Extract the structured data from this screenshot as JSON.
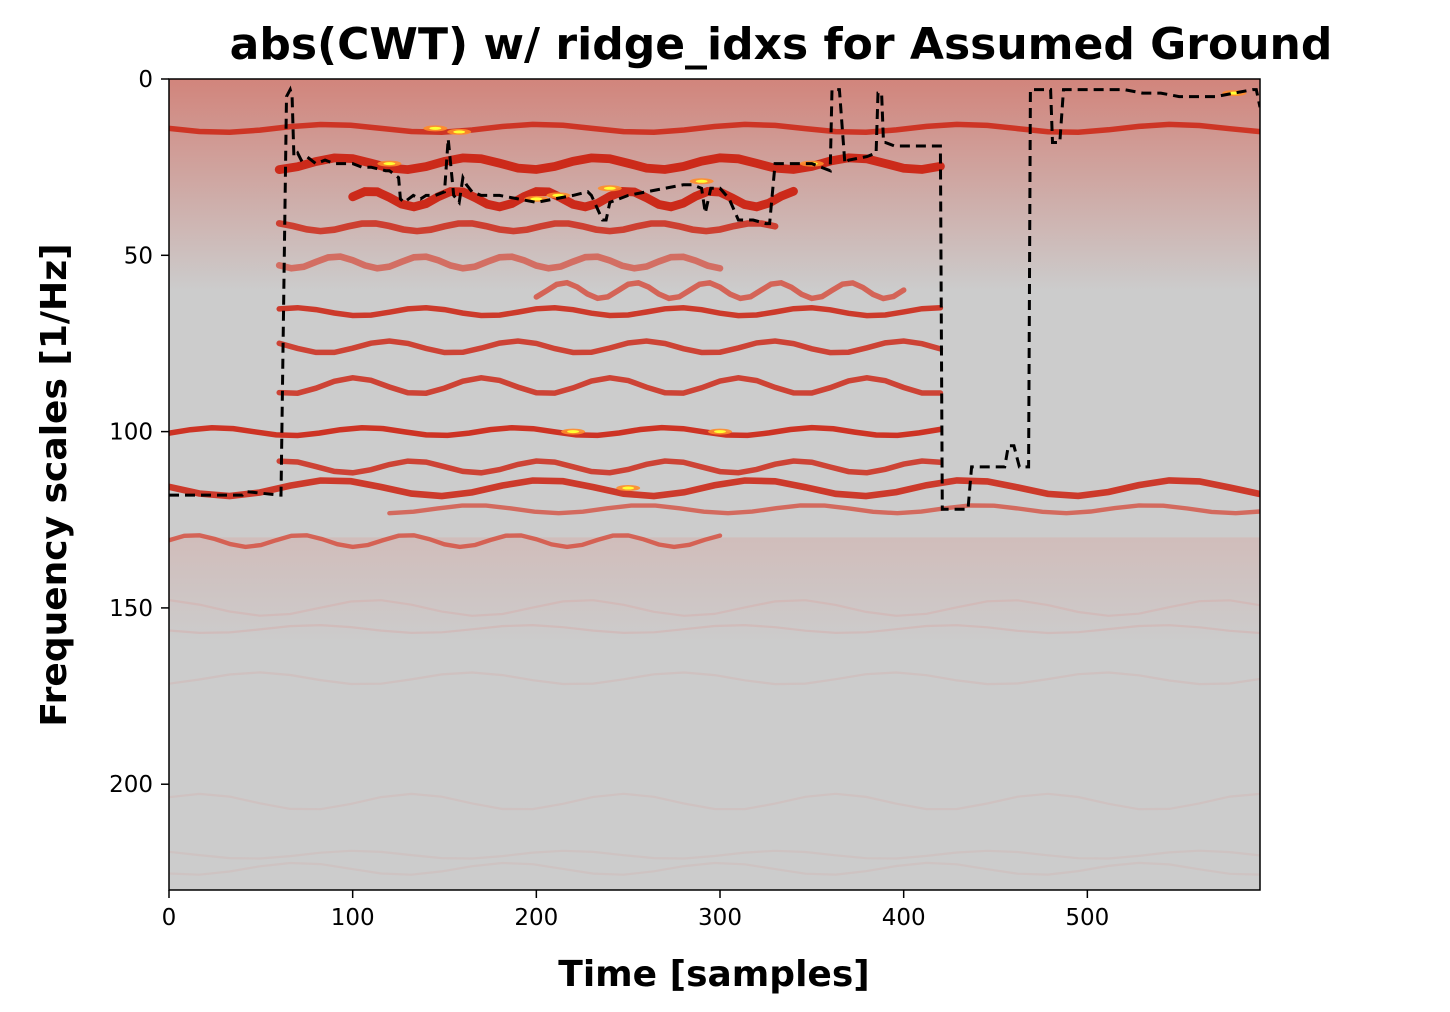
{
  "chart_data": {
    "type": "heatmap",
    "title": "abs(CWT) w/ ridge_idxs for Assumed Ground",
    "xlabel": "Time [samples]",
    "ylabel": "Frequency scales [1/Hz]",
    "xlim": [
      0,
      594
    ],
    "ylim": [
      230,
      0
    ],
    "x_ticks": [
      0,
      100,
      200,
      300,
      400,
      500
    ],
    "y_ticks": [
      0,
      50,
      100,
      150,
      200
    ],
    "grid": false,
    "colormap": [
      "#cccccc",
      "#d9a09a",
      "#d64a3a",
      "#cc2a1a",
      "#ff8c2a",
      "#ffff33"
    ],
    "background_color": "#cccccc",
    "ridge_color": "#000000",
    "ridge_line_style": "dashed",
    "ridge_idxs": {
      "x": [
        0,
        40,
        42,
        60,
        61,
        64,
        66,
        67,
        68,
        70,
        72,
        75,
        80,
        85,
        90,
        100,
        105,
        110,
        118,
        120,
        125,
        126,
        128,
        133,
        137,
        140,
        145,
        150,
        152,
        155,
        158,
        160,
        162,
        165,
        170,
        175,
        180,
        190,
        200,
        210,
        220,
        228,
        230,
        236,
        238,
        240,
        245,
        250,
        260,
        270,
        280,
        285,
        290,
        292,
        295,
        300,
        305,
        310,
        318,
        325,
        327,
        330,
        335,
        340,
        350,
        355,
        360,
        361,
        362,
        365,
        368,
        370,
        380,
        385,
        386,
        388,
        389,
        390,
        395,
        400,
        410,
        420,
        421,
        430,
        435,
        437,
        440,
        450,
        455,
        457,
        460,
        463,
        465,
        468,
        469,
        472,
        480,
        481,
        483,
        485,
        487,
        488,
        495,
        500,
        510,
        520,
        530,
        540,
        550,
        560,
        570,
        580,
        590,
        592,
        594
      ],
      "y": [
        118,
        118,
        117,
        118,
        118,
        5,
        3,
        5,
        22,
        21,
        23,
        22,
        24,
        23,
        24,
        24,
        25,
        25,
        26,
        26,
        28,
        34,
        35,
        33,
        34,
        33,
        33,
        32,
        17,
        33,
        35,
        28,
        30,
        32,
        33,
        33,
        33,
        34,
        35,
        34,
        33,
        32,
        33,
        40,
        40,
        35,
        34,
        33,
        32,
        31,
        30,
        30,
        31,
        38,
        31,
        31,
        34,
        40,
        40,
        41,
        41,
        24,
        24,
        24,
        24,
        25,
        26,
        3,
        3,
        3,
        24,
        23,
        22,
        21,
        4,
        4,
        18,
        18,
        19,
        19,
        19,
        19,
        122,
        122,
        122,
        110,
        110,
        110,
        110,
        104,
        104,
        110,
        110,
        110,
        3,
        3,
        3,
        18,
        18,
        18,
        3,
        3,
        3,
        3,
        3,
        3,
        4,
        4,
        5,
        5,
        5,
        4,
        3,
        3,
        8
      ],
      "note_scale": "ridge y in frequency scale units"
    },
    "bands": [
      {
        "y": 14,
        "x0": 0,
        "x1": 594,
        "w": 2.5,
        "i": 0.8
      },
      {
        "y": 24,
        "x0": 60,
        "x1": 420,
        "w": 4,
        "i": 0.9
      },
      {
        "y": 34,
        "x0": 100,
        "x1": 340,
        "w": 4,
        "i": 0.95
      },
      {
        "y": 42,
        "x0": 60,
        "x1": 330,
        "w": 3,
        "i": 0.75
      },
      {
        "y": 52,
        "x0": 60,
        "x1": 300,
        "w": 3,
        "i": 0.6
      },
      {
        "y": 60,
        "x0": 200,
        "x1": 400,
        "w": 2.5,
        "i": 0.7
      },
      {
        "y": 66,
        "x0": 60,
        "x1": 420,
        "w": 2.5,
        "i": 0.8
      },
      {
        "y": 76,
        "x0": 60,
        "x1": 420,
        "w": 2.5,
        "i": 0.75
      },
      {
        "y": 87,
        "x0": 60,
        "x1": 420,
        "w": 2.5,
        "i": 0.75
      },
      {
        "y": 100,
        "x0": 0,
        "x1": 420,
        "w": 2.5,
        "i": 0.85
      },
      {
        "y": 110,
        "x0": 60,
        "x1": 420,
        "w": 2.5,
        "i": 0.75
      },
      {
        "y": 116,
        "x0": 0,
        "x1": 594,
        "w": 3,
        "i": 0.8
      },
      {
        "y": 122,
        "x0": 120,
        "x1": 594,
        "w": 2,
        "i": 0.65
      },
      {
        "y": 131,
        "x0": 0,
        "x1": 300,
        "w": 2,
        "i": 0.7
      },
      {
        "y": 150,
        "x0": 0,
        "x1": 594,
        "w": 1,
        "i": 0.2
      },
      {
        "y": 156,
        "x0": 0,
        "x1": 594,
        "w": 1,
        "i": 0.22
      },
      {
        "y": 170,
        "x0": 0,
        "x1": 594,
        "w": 1,
        "i": 0.15
      },
      {
        "y": 205,
        "x0": 0,
        "x1": 594,
        "w": 1,
        "i": 0.12
      },
      {
        "y": 220,
        "x0": 0,
        "x1": 594,
        "w": 1,
        "i": 0.1
      },
      {
        "y": 224,
        "x0": 0,
        "x1": 594,
        "w": 1,
        "i": 0.1
      }
    ]
  }
}
